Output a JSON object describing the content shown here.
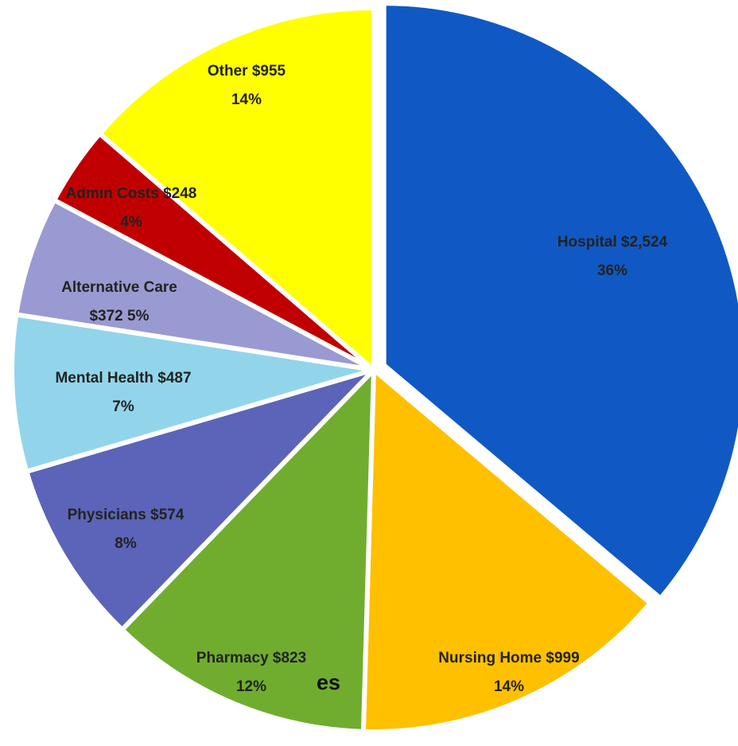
{
  "chart_data": {
    "type": "pie",
    "categories": [
      "Hospital",
      "Nursing Home",
      "Pharmacy",
      "Physicians",
      "Mental Health",
      "Alternative Care",
      "Admin Costs",
      "Other"
    ],
    "values": [
      2524,
      999,
      823,
      574,
      487,
      372,
      248,
      955
    ],
    "value_labels": [
      "$2,524",
      "$999",
      "$823",
      "$574",
      "$487",
      "$372",
      "$248",
      "$955"
    ],
    "percent_labels": [
      "36%",
      "14%",
      "12%",
      "8%",
      "7%",
      "5%",
      "4%",
      "14%"
    ],
    "colors": [
      "#1059c4",
      "#ffc000",
      "#70ad2f",
      "#5b64b8",
      "#92d5ea",
      "#9a9ad2",
      "#c00000",
      "#ffff00"
    ],
    "annotation": "es"
  }
}
